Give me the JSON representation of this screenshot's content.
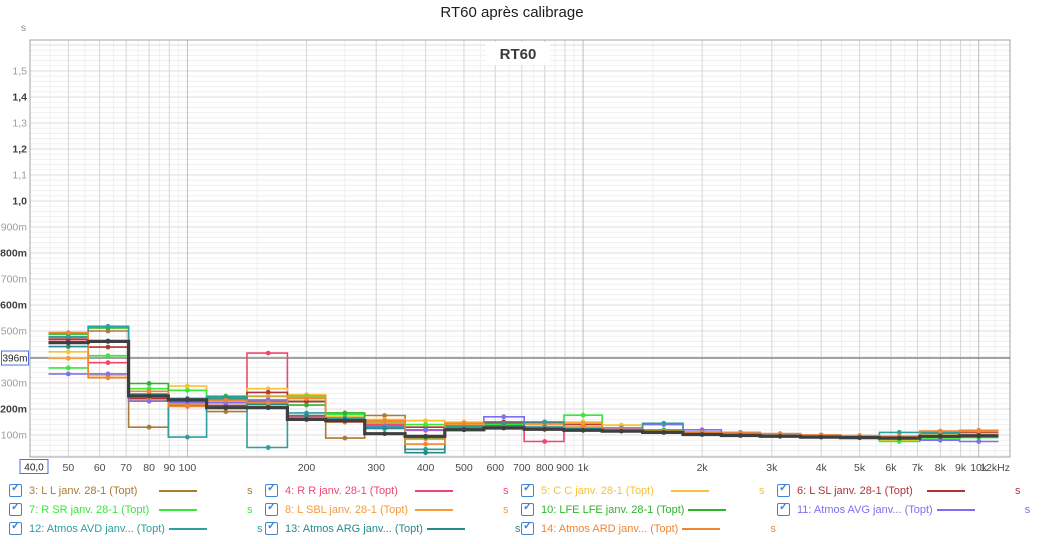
{
  "title": "RT60 après calibrage",
  "chart": {
    "unit_label": "s",
    "inner_label": "RT60",
    "cursor_x_label": "40,0",
    "cursor_y_label": "396m",
    "x_end_label": "12kHz"
  },
  "chart_data": {
    "type": "line",
    "subtype": "one-third-octave step trace (RT60 vs frequency)",
    "x_unit": "Hz",
    "y_unit": "s",
    "x_scale": "log",
    "x_range_hz": [
      40,
      12000
    ],
    "y_range_s": [
      0,
      1.62
    ],
    "grid": "on",
    "cursor": {
      "x_hz": 40.0,
      "y_ms": 396
    },
    "y_ticks": [
      {
        "v": 100,
        "label": "100m",
        "strong": false
      },
      {
        "v": 200,
        "label": "200m",
        "strong": true
      },
      {
        "v": 300,
        "label": "300m",
        "strong": false
      },
      {
        "v": 500,
        "label": "500m",
        "strong": false
      },
      {
        "v": 600,
        "label": "600m",
        "strong": true
      },
      {
        "v": 700,
        "label": "700m",
        "strong": false
      },
      {
        "v": 800,
        "label": "800m",
        "strong": true
      },
      {
        "v": 900,
        "label": "900m",
        "strong": false
      },
      {
        "v": 1000,
        "label": "1,0",
        "strong": true
      },
      {
        "v": 1100,
        "label": "1,1",
        "strong": false
      },
      {
        "v": 1200,
        "label": "1,2",
        "strong": true
      },
      {
        "v": 1300,
        "label": "1,3",
        "strong": false
      },
      {
        "v": 1400,
        "label": "1,4",
        "strong": true
      },
      {
        "v": 1500,
        "label": "1,5",
        "strong": false
      }
    ],
    "x_ticks": [
      {
        "f": 50,
        "label": "50",
        "strong": false
      },
      {
        "f": 60,
        "label": "60",
        "strong": false
      },
      {
        "f": 70,
        "label": "70",
        "strong": false
      },
      {
        "f": 80,
        "label": "80",
        "strong": false
      },
      {
        "f": 90,
        "label": "90",
        "strong": false
      },
      {
        "f": 100,
        "label": "100",
        "strong": true
      },
      {
        "f": 200,
        "label": "200",
        "strong": false
      },
      {
        "f": 300,
        "label": "300",
        "strong": false
      },
      {
        "f": 400,
        "label": "400",
        "strong": false
      },
      {
        "f": 500,
        "label": "500",
        "strong": false
      },
      {
        "f": 600,
        "label": "600",
        "strong": false
      },
      {
        "f": 700,
        "label": "700",
        "strong": false
      },
      {
        "f": 800,
        "label": "800",
        "strong": false
      },
      {
        "f": 900,
        "label": "900",
        "strong": false
      },
      {
        "f": 1000,
        "label": "1k",
        "strong": true
      },
      {
        "f": 2000,
        "label": "2k",
        "strong": false
      },
      {
        "f": 3000,
        "label": "3k",
        "strong": false
      },
      {
        "f": 4000,
        "label": "4k",
        "strong": false
      },
      {
        "f": 5000,
        "label": "5k",
        "strong": false
      },
      {
        "f": 6000,
        "label": "6k",
        "strong": false
      },
      {
        "f": 7000,
        "label": "7k",
        "strong": false
      },
      {
        "f": 8000,
        "label": "8k",
        "strong": false
      },
      {
        "f": 9000,
        "label": "9k",
        "strong": false
      },
      {
        "f": 10000,
        "label": "10k",
        "strong": true
      },
      {
        "f": 12000,
        "label": "12kHz",
        "strong": false
      }
    ],
    "bands_hz": [
      50,
      63,
      80,
      100,
      125,
      160,
      200,
      250,
      315,
      400,
      500,
      630,
      800,
      1000,
      1250,
      1600,
      2000,
      2500,
      3150,
      4000,
      5000,
      6300,
      8000,
      10000
    ],
    "series": [
      {
        "name": "3: L L janv. 28-1 (Topt)",
        "color": "#a87b36",
        "width": 1.6,
        "values_ms": [
          475,
          500,
          130,
          215,
          190,
          230,
          230,
          88,
          175,
          85,
          140,
          135,
          150,
          120,
          115,
          110,
          105,
          100,
          98,
          95,
          92,
          88,
          95,
          100
        ]
      },
      {
        "name": "4: R R janv. 28-1 (Topt)",
        "color": "#ef4870",
        "width": 1.6,
        "values_ms": [
          460,
          378,
          258,
          240,
          228,
          415,
          170,
          150,
          140,
          118,
          130,
          128,
          75,
          125,
          120,
          113,
          105,
          100,
          99,
          96,
          92,
          90,
          107,
          112
        ]
      },
      {
        "name": "5: C C janv. 28-1 (Topt)",
        "color": "#f7c23a",
        "width": 1.6,
        "values_ms": [
          420,
          330,
          230,
          288,
          238,
          278,
          255,
          170,
          160,
          155,
          150,
          148,
          145,
          150,
          138,
          115,
          110,
          105,
          100,
          98,
          95,
          80,
          105,
          106
        ]
      },
      {
        "name": "6: L SL janv. 28-1 (Topt)",
        "color": "#b03335",
        "width": 1.6,
        "values_ms": [
          468,
          438,
          240,
          233,
          214,
          264,
          228,
          158,
          150,
          130,
          135,
          150,
          148,
          140,
          120,
          114,
          107,
          102,
          100,
          96,
          92,
          90,
          108,
          112
        ]
      },
      {
        "name": "7: R SR janv. 28-1 (Topt)",
        "color": "#3ae83a",
        "width": 1.6,
        "values_ms": [
          358,
          405,
          278,
          272,
          250,
          248,
          250,
          178,
          146,
          140,
          138,
          140,
          140,
          176,
          128,
          120,
          110,
          104,
          100,
          95,
          90,
          75,
          85,
          90
        ]
      },
      {
        "name": "8: L SBL janv. 28-1 (Topt)",
        "color": "#f69b3c",
        "width": 1.6,
        "values_ms": [
          395,
          322,
          235,
          220,
          230,
          250,
          245,
          155,
          150,
          85,
          140,
          135,
          140,
          145,
          125,
          118,
          112,
          108,
          104,
          100,
          96,
          92,
          112,
          115
        ]
      },
      {
        "name": "10: LFE LFE janv. 28-1 (Topt)",
        "color": "#2cb52c",
        "width": 1.6,
        "values_ms": [
          488,
          512,
          298,
          228,
          244,
          210,
          215,
          185,
          135,
          90,
          130,
          135,
          130,
          130,
          125,
          118,
          108,
          100,
          98,
          95,
          90,
          88,
          92,
          95
        ]
      },
      {
        "name": "11: Atmos AVG janv... (Topt)",
        "color": "#7e6ff0",
        "width": 1.6,
        "values_ms": [
          335,
          335,
          230,
          225,
          224,
          235,
          160,
          150,
          135,
          120,
          125,
          170,
          130,
          120,
          125,
          140,
          120,
          110,
          105,
          100,
          95,
          90,
          80,
          75
        ]
      },
      {
        "name": "12: Atmos AVD janv... (Topt)",
        "color": "#2f9e9e",
        "width": 1.6,
        "values_ms": [
          478,
          518,
          255,
          92,
          248,
          52,
          185,
          165,
          130,
          45,
          135,
          145,
          150,
          125,
          120,
          145,
          110,
          105,
          100,
          98,
          95,
          110,
          110,
          100
        ]
      },
      {
        "name": "13: Atmos ARG janv... (Topt)",
        "color": "#278b8b",
        "width": 1.6,
        "values_ms": [
          440,
          462,
          250,
          240,
          238,
          218,
          175,
          160,
          125,
          32,
          125,
          135,
          130,
          125,
          118,
          112,
          105,
          100,
          97,
          94,
          90,
          88,
          95,
          98
        ]
      },
      {
        "name": "14: Atmos ARD janv... (Topt)",
        "color": "#ef8633",
        "width": 1.6,
        "values_ms": [
          494,
          320,
          268,
          210,
          234,
          224,
          240,
          150,
          155,
          65,
          145,
          130,
          125,
          130,
          122,
          115,
          110,
          108,
          105,
          100,
          98,
          95,
          115,
          118
        ]
      },
      {
        "name": "",
        "color": "#3f3f3f",
        "width": 3.2,
        "values_ms": [
          455,
          460,
          250,
          235,
          205,
          205,
          160,
          155,
          105,
          95,
          120,
          127,
          122,
          118,
          115,
          110,
          102,
          98,
          95,
          92,
          90,
          88,
          95,
          97
        ]
      }
    ]
  },
  "legend": {
    "check_glyph": "✓",
    "unit": "s",
    "items": [
      {
        "label": "3: L L janv. 28-1 (Topt)",
        "color": "#a87b36",
        "checked": true,
        "row": 1,
        "col": 1
      },
      {
        "label": "4: R R janv. 28-1 (Topt)",
        "color": "#ef4870",
        "checked": true,
        "row": 1,
        "col": 2
      },
      {
        "label": "5: C C janv. 28-1 (Topt)",
        "color": "#f7c23a",
        "checked": true,
        "row": 1,
        "col": 3
      },
      {
        "label": "6: L SL janv. 28-1 (Topt)",
        "color": "#b03335",
        "checked": true,
        "row": 1,
        "col": 4
      },
      {
        "label": "7: R SR janv. 28-1 (Topt)",
        "color": "#3ae83a",
        "checked": true,
        "row": 2,
        "col": 1
      },
      {
        "label": "8: L SBL janv. 28-1 (Topt)",
        "color": "#f69b3c",
        "checked": true,
        "row": 2,
        "col": 2
      },
      {
        "label": "10: LFE LFE janv. 28-1 (Topt)",
        "color": "#2cb52c",
        "checked": true,
        "row": 2,
        "col": 3
      },
      {
        "label": "11: Atmos AVG janv... (Topt)",
        "color": "#7e6ff0",
        "checked": true,
        "row": 2,
        "col": 4
      },
      {
        "label": "12: Atmos AVD janv... (Topt)",
        "color": "#2f9e9e",
        "checked": true,
        "row": 3,
        "col": 1
      },
      {
        "label": "13: Atmos ARG janv... (Topt)",
        "color": "#278b8b",
        "checked": true,
        "row": 3,
        "col": 2
      },
      {
        "label": "14: Atmos ARD janv... (Topt)",
        "color": "#ef8633",
        "checked": true,
        "row": 3,
        "col": 3
      }
    ]
  }
}
